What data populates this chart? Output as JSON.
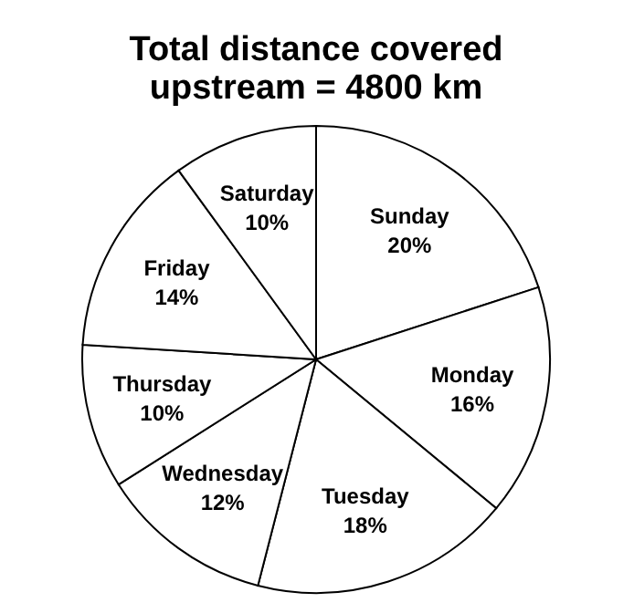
{
  "chart_data": {
    "type": "pie",
    "title": "Total distance covered\nupstream = 4800 km",
    "categories": [
      "Sunday",
      "Monday",
      "Tuesday",
      "Wednesday",
      "Thursday",
      "Friday",
      "Saturday"
    ],
    "values": [
      20,
      16,
      18,
      12,
      10,
      14,
      10
    ],
    "value_labels": [
      "20%",
      "16%",
      "18%",
      "12%",
      "10%",
      "14%",
      "10%"
    ],
    "colors": [
      "#ffffff",
      "#ffffff",
      "#ffffff",
      "#ffffff",
      "#ffffff",
      "#ffffff",
      "#ffffff"
    ],
    "legend": false
  }
}
